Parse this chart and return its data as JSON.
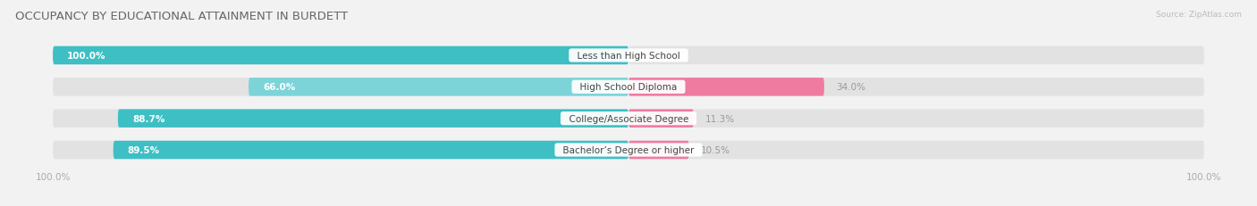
{
  "title": "OCCUPANCY BY EDUCATIONAL ATTAINMENT IN BURDETT",
  "source": "Source: ZipAtlas.com",
  "categories": [
    "Less than High School",
    "High School Diploma",
    "College/Associate Degree",
    "Bachelor’s Degree or higher"
  ],
  "owner_pct": [
    100.0,
    66.0,
    88.7,
    89.5
  ],
  "renter_pct": [
    0.0,
    34.0,
    11.3,
    10.5
  ],
  "owner_color": "#3dbfc4",
  "renter_color": "#f07ba0",
  "owner_color_light": "#7dd4d8",
  "bar_height": 0.58,
  "background_color": "#f2f2f2",
  "bar_background": "#e2e2e2",
  "title_fontsize": 9.5,
  "label_fontsize": 7.5,
  "cat_fontsize": 7.5,
  "tick_fontsize": 7.5,
  "legend_fontsize": 8,
  "total_width": 100.0
}
